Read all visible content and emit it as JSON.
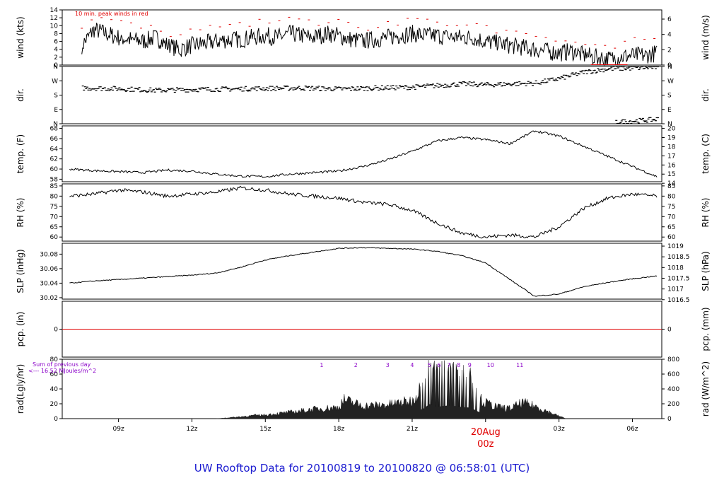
{
  "title": "UW Rooftop Data for 20100819  to  20100820 @ 06:58:01  (UTC)",
  "colors": {
    "accent_red": "#e00000",
    "purple": "#8a00c8",
    "title_blue": "#1a1ad0",
    "trace": "#000000"
  },
  "chart_data": [
    {
      "id": "wind",
      "type": "line",
      "ylabel_left": "wind (kts)",
      "ylabel_right": "wind (m/s)",
      "ylim": [
        0,
        14
      ],
      "yticks_left": [
        "0",
        "2",
        "4",
        "6",
        "8",
        "10",
        "12",
        "14"
      ],
      "yticks_right": [
        "0",
        "2",
        "4",
        "6"
      ],
      "annotation": "10 min. peak winds in red",
      "series": [
        {
          "name": "wind",
          "x": [
            7.5,
            8.0,
            8.5,
            9.0,
            9.5,
            10.0,
            10.5,
            11.0,
            11.5,
            12.0,
            12.5,
            13.0,
            13.5,
            14.0,
            14.5,
            15.0,
            15.5,
            16.0,
            16.5,
            17.0,
            17.5,
            18.0,
            18.5,
            19.0,
            19.5,
            20.0,
            20.5,
            21.0,
            21.5,
            22.0,
            22.5,
            23.0,
            23.5,
            24.0,
            24.5,
            25.0,
            25.5,
            26.0,
            26.5,
            27.0,
            27.5,
            28.0,
            28.5,
            29.0,
            29.5,
            30.0,
            30.5,
            31.0
          ],
          "values": [
            5,
            9,
            8,
            7,
            6.5,
            6,
            7,
            5,
            4,
            5,
            5.5,
            6,
            6.5,
            6.5,
            7,
            7.5,
            7,
            8,
            7.5,
            7,
            8,
            7.5,
            6.5,
            6,
            6.5,
            7,
            7.5,
            8,
            7.5,
            7.5,
            7,
            7,
            7,
            6,
            5.5,
            5,
            4.5,
            4,
            3.5,
            3,
            3.5,
            2.5,
            2,
            1.5,
            2,
            2.5,
            2.5,
            3
          ]
        }
      ]
    },
    {
      "id": "dir",
      "type": "scatter",
      "ylabel_left": "dir.",
      "ylabel_right": "dir.",
      "ylim": [
        0,
        360
      ],
      "yticks_left": [
        "N",
        "E",
        "S",
        "W",
        "N"
      ],
      "yticks_right": [
        "N",
        "E",
        "S",
        "W",
        "N"
      ],
      "series": [
        {
          "name": "direction",
          "x": [
            7.5,
            9,
            10.5,
            12,
            13.5,
            15,
            16.5,
            18,
            19.5,
            21,
            22,
            23,
            24,
            25,
            26,
            27,
            28,
            29,
            30,
            31
          ],
          "values": [
            225,
            220,
            210,
            215,
            218,
            222,
            225,
            218,
            225,
            230,
            240,
            250,
            245,
            250,
            255,
            285,
            325,
            345,
            350,
            355
          ]
        },
        {
          "name": "direction_low",
          "x": [
            29.3,
            29.8,
            30.3,
            30.8,
            31.0
          ],
          "values": [
            10,
            15,
            20,
            25,
            30
          ]
        }
      ]
    },
    {
      "id": "temp",
      "type": "line",
      "ylabel_left": "temp. (F)",
      "ylabel_right": "temp. (C)",
      "ylim": [
        57.5,
        68.5
      ],
      "yticks_left": [
        "58",
        "60",
        "62",
        "64",
        "66",
        "68"
      ],
      "yticks_right": [
        "14",
        "15",
        "16",
        "17",
        "18",
        "19",
        "20"
      ],
      "series": [
        {
          "name": "temp",
          "x": [
            7.0,
            8.0,
            9.0,
            10.0,
            11.0,
            12.0,
            13.0,
            14.0,
            15.0,
            16.0,
            17.0,
            18.0,
            19.0,
            20.0,
            21.0,
            22.0,
            23.0,
            24.0,
            25.0,
            26.0,
            27.0,
            28.0,
            29.0,
            30.0,
            31.0
          ],
          "values": [
            60,
            59.7,
            59.5,
            59.3,
            59.8,
            59.6,
            59.0,
            58.6,
            58.5,
            59.0,
            59.3,
            59.6,
            60.5,
            61.8,
            63.5,
            65.5,
            66.2,
            65.8,
            65.0,
            67.5,
            66.5,
            64.5,
            62.5,
            60.5,
            58.5
          ]
        }
      ]
    },
    {
      "id": "rh",
      "type": "line",
      "ylabel_left": "RH (%)",
      "ylabel_right": "RH (%)",
      "ylim": [
        58,
        86
      ],
      "yticks_left": [
        "60",
        "65",
        "70",
        "75",
        "80",
        "85"
      ],
      "yticks_right": [
        "60",
        "65",
        "70",
        "75",
        "80",
        "85"
      ],
      "series": [
        {
          "name": "rh",
          "x": [
            7.0,
            8.0,
            9.0,
            10.0,
            11.0,
            12.0,
            13.0,
            14.0,
            15.0,
            16.0,
            17.0,
            18.0,
            19.0,
            20.0,
            21.0,
            22.0,
            23.0,
            24.0,
            25.0,
            26.0,
            27.0,
            28.0,
            29.0,
            30.0,
            31.0
          ],
          "values": [
            80,
            81,
            83,
            82,
            80,
            81,
            82,
            84,
            83,
            81,
            80,
            79,
            77,
            76,
            73,
            67,
            62,
            60,
            61,
            60,
            65,
            74,
            79,
            81,
            80
          ]
        }
      ]
    },
    {
      "id": "slp",
      "type": "line",
      "ylabel_left": "SLP (inHg)",
      "ylabel_right": "SLP (hPa)",
      "ylim": [
        30.018,
        30.095
      ],
      "yticks_left": [
        "30.02",
        "30.04",
        "30.06",
        "30.08"
      ],
      "yticks_right": [
        "1016.5",
        "1017",
        "1017.5",
        "1018",
        "1018.5",
        "1019"
      ],
      "series": [
        {
          "name": "slp",
          "x": [
            7.0,
            8.0,
            9.0,
            10.0,
            11.0,
            12.0,
            13.0,
            14.0,
            15.0,
            16.0,
            17.0,
            18.0,
            19.0,
            20.0,
            21.0,
            22.0,
            23.0,
            24.0,
            25.0,
            26.0,
            27.0,
            28.0,
            29.0,
            30.0,
            31.0
          ],
          "values": [
            30.04,
            30.043,
            30.045,
            30.047,
            30.049,
            30.051,
            30.054,
            30.062,
            30.072,
            30.078,
            30.083,
            30.088,
            30.089,
            30.088,
            30.087,
            30.084,
            30.078,
            30.068,
            30.045,
            30.022,
            30.025,
            30.035,
            30.041,
            30.046,
            30.05
          ]
        }
      ]
    },
    {
      "id": "pcp",
      "type": "line",
      "ylabel_left": "pcp. (in)",
      "ylabel_right": "pcp. (mm)",
      "ylim": [
        -1,
        1
      ],
      "yticks_left": [
        "0"
      ],
      "yticks_right": [
        "0"
      ],
      "series": [
        {
          "name": "pcp",
          "x": [
            6.7,
            31.2
          ],
          "values": [
            0,
            0
          ]
        }
      ]
    },
    {
      "id": "rad",
      "type": "area",
      "ylabel_left": "rad(Lgly/hr)",
      "ylabel_right": "rad (W/m^2)",
      "ylim": [
        0,
        80
      ],
      "yticks_left": [
        "0",
        "20",
        "40",
        "60",
        "80"
      ],
      "yticks_right": [
        "0",
        "200",
        "400",
        "600",
        "800"
      ],
      "annotation_lines": [
        "Sum of previous day",
        "<--- 16.52 MJoules/m^2"
      ],
      "hour_markers": [
        {
          "label": "1",
          "x": 17.3
        },
        {
          "label": "2",
          "x": 18.7
        },
        {
          "label": "3",
          "x": 20.0
        },
        {
          "label": "4",
          "x": 21.0
        },
        {
          "label": "5",
          "x": 21.7
        },
        {
          "label": "6",
          "x": 22.1
        },
        {
          "label": "7",
          "x": 22.5
        },
        {
          "label": "8",
          "x": 22.9
        },
        {
          "label": "9",
          "x": 23.35
        },
        {
          "label": "10",
          "x": 24.2
        },
        {
          "label": "11",
          "x": 25.4
        }
      ],
      "series": [
        {
          "name": "rad",
          "x": [
            13.0,
            14.0,
            14.5,
            15.0,
            16.0,
            17.0,
            18.0,
            18.2,
            19.0,
            20.0,
            20.5,
            21.0,
            21.3,
            21.5,
            21.7,
            22.0,
            22.3,
            22.6,
            23.0,
            23.4,
            23.8,
            24.0,
            24.5,
            25.0,
            25.5,
            26.0,
            26.5,
            27.0,
            27.3
          ],
          "values": [
            0,
            3,
            5,
            6,
            10,
            15,
            18,
            30,
            20,
            22,
            25,
            28,
            45,
            55,
            78,
            62,
            68,
            70,
            62,
            58,
            30,
            25,
            18,
            16,
            25,
            20,
            12,
            4,
            0
          ]
        }
      ]
    }
  ],
  "x_axis": {
    "range": [
      6.7,
      31.2
    ],
    "ticks": [
      {
        "label": "09z",
        "x": 9
      },
      {
        "label": "12z",
        "x": 12
      },
      {
        "label": "15z",
        "x": 15
      },
      {
        "label": "18z",
        "x": 18
      },
      {
        "label": "21z",
        "x": 21
      },
      {
        "label": "03z",
        "x": 27
      },
      {
        "label": "06z",
        "x": 30
      }
    ],
    "day_marker": {
      "date": "20Aug",
      "time": "00z",
      "x": 24
    }
  }
}
